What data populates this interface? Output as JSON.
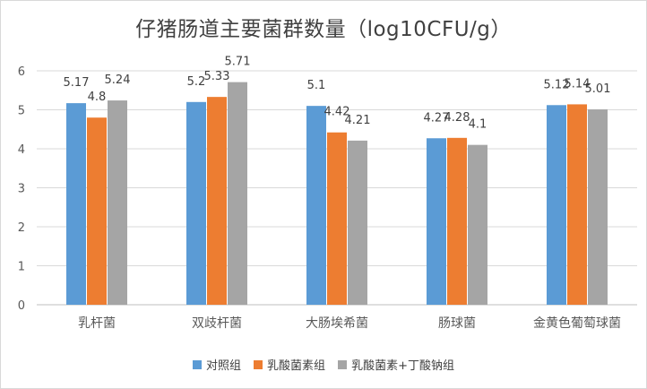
{
  "chart_data": {
    "type": "bar",
    "title": "仔猪肠道主要菌群数量（log10CFU/g）",
    "categories": [
      "乳杆菌",
      "双歧杆菌",
      "大肠埃希菌",
      "肠球菌",
      "金黄色葡萄球菌"
    ],
    "series": [
      {
        "name": "对照组",
        "color": "#5b9bd5",
        "values": [
          5.17,
          5.2,
          5.1,
          4.27,
          5.12
        ]
      },
      {
        "name": "乳酸菌素组",
        "color": "#ed7d31",
        "values": [
          4.8,
          5.33,
          4.42,
          4.28,
          5.14
        ]
      },
      {
        "name": "乳酸菌素+丁酸钠组",
        "color": "#a5a5a5",
        "values": [
          5.24,
          5.71,
          4.21,
          4.1,
          5.01
        ]
      }
    ],
    "value_labels": [
      [
        "5.17",
        "5.2",
        "5.1",
        "4.27",
        "5.12"
      ],
      [
        "4.8",
        "5.33",
        "4.42",
        "4.28",
        "5.14"
      ],
      [
        "5.24",
        "5.71",
        "4.21",
        "4.1",
        "5.01"
      ]
    ],
    "ylim": [
      0,
      6
    ],
    "yticks": [
      0,
      1,
      2,
      3,
      4,
      5,
      6
    ],
    "grid": true,
    "legend": "bottom",
    "xlabel": "",
    "ylabel": ""
  }
}
